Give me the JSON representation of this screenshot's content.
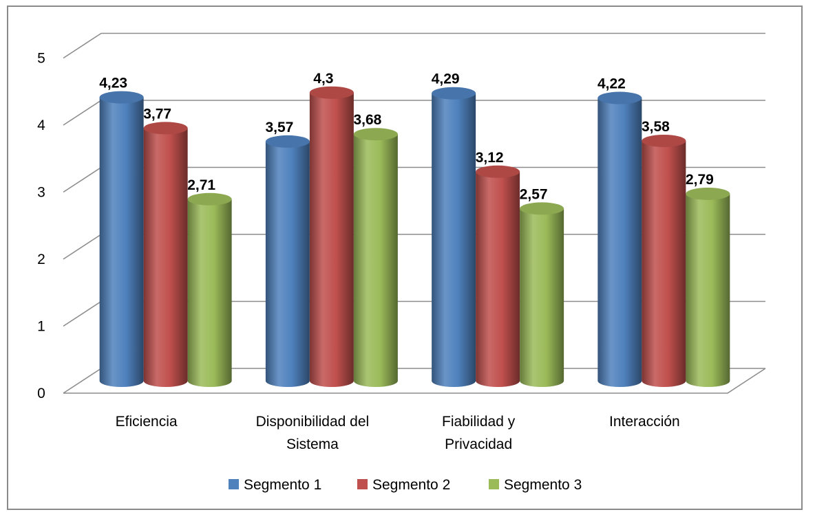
{
  "chart_data": {
    "type": "bar",
    "style": "3d-cylinder",
    "categories": [
      [
        "Eficiencia"
      ],
      [
        "Disponibilidad del",
        "Sistema"
      ],
      [
        "Fiabilidad y",
        "Privacidad"
      ],
      [
        "Interacción"
      ]
    ],
    "series": [
      {
        "name": "Segmento 1",
        "color": "#4f81bd",
        "values": [
          4.23,
          3.57,
          4.29,
          4.22
        ],
        "labels": [
          "4,23",
          "3,57",
          "4,29",
          "4,22"
        ]
      },
      {
        "name": "Segmento 2",
        "color": "#c0504d",
        "values": [
          3.77,
          4.3,
          3.12,
          3.58
        ],
        "labels": [
          "3,77",
          "4,3",
          "3,12",
          "3,58"
        ]
      },
      {
        "name": "Segmento 3",
        "color": "#9bbb59",
        "values": [
          2.71,
          3.68,
          2.57,
          2.79
        ],
        "labels": [
          "2,71",
          "3,68",
          "2,57",
          "2,79"
        ]
      }
    ],
    "ylim": [
      0,
      5
    ],
    "yticks": [
      "0",
      "1",
      "2",
      "3",
      "4",
      "5"
    ],
    "grid": true,
    "legend_position": "bottom"
  }
}
